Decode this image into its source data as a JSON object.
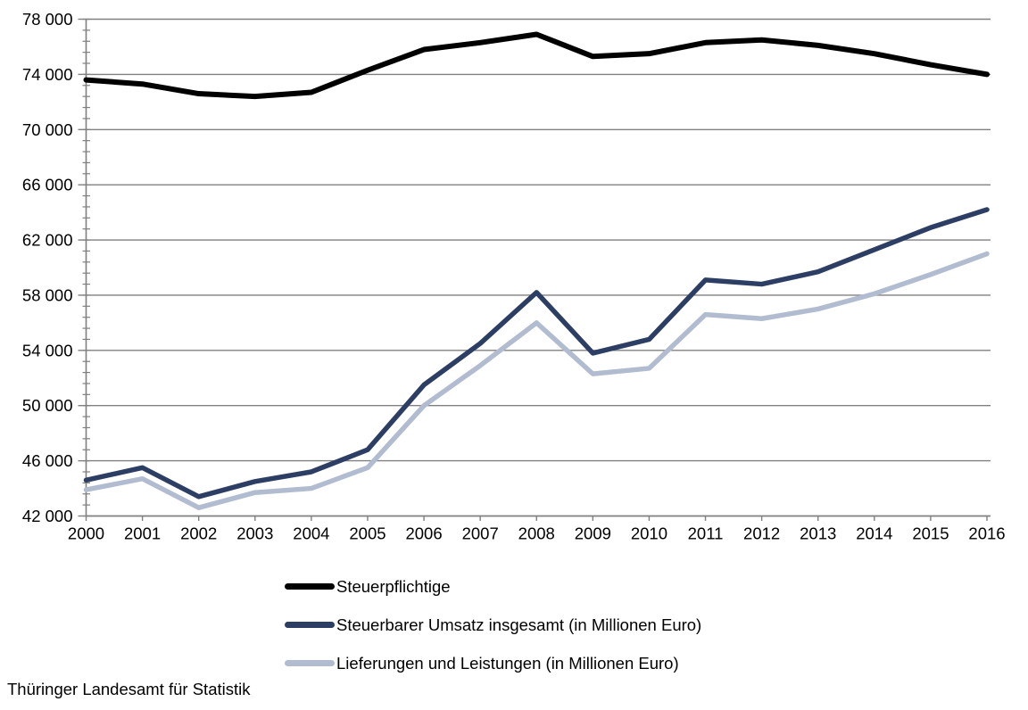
{
  "chart_data": {
    "type": "line",
    "title": "",
    "xlabel": "",
    "ylabel": "",
    "x": [
      2000,
      2001,
      2002,
      2003,
      2004,
      2005,
      2006,
      2007,
      2008,
      2009,
      2010,
      2011,
      2012,
      2013,
      2014,
      2015,
      2016
    ],
    "x_tick_labels": [
      "2000",
      "2001",
      "2002",
      "2003",
      "2004",
      "2005",
      "2006",
      "2007",
      "2008",
      "2009",
      "2010",
      "2011",
      "2012",
      "2013",
      "2014",
      "2015",
      "2016"
    ],
    "y_axis": {
      "min": 42000,
      "max": 78000,
      "major_step": 4000,
      "minor_step": 800,
      "tick_values": [
        42000,
        46000,
        50000,
        54000,
        58000,
        62000,
        66000,
        70000,
        74000,
        78000
      ],
      "tick_labels": [
        "42 000",
        "46 000",
        "50 000",
        "54 000",
        "58 000",
        "62 000",
        "66 000",
        "70 000",
        "74 000",
        "78 000"
      ]
    },
    "grid": "horizontal-major",
    "grid_color": "#808080",
    "axis_color": "#808080",
    "text_color": "#000000",
    "background_color": "#ffffff",
    "legend_position": "bottom-left",
    "series": [
      {
        "name": "Steuerpflichtige",
        "color": "#000000",
        "line_width": 6,
        "values": [
          73600,
          73300,
          72600,
          72400,
          72700,
          74300,
          75800,
          76300,
          76900,
          75300,
          75500,
          76300,
          76500,
          76100,
          75500,
          74700,
          74000
        ]
      },
      {
        "name": "Steuerbarer Umsatz insgesamt (in Millionen Euro)",
        "color": "#2C3E63",
        "line_width": 5.5,
        "values": [
          44600,
          45500,
          43400,
          44500,
          45200,
          46800,
          51500,
          54500,
          58200,
          53800,
          54800,
          59100,
          58800,
          59700,
          61300,
          62900,
          64200
        ]
      },
      {
        "name": "Lieferungen und Leistungen (in Millionen Euro)",
        "color": "#B2BCD0",
        "line_width": 5.5,
        "values": [
          43900,
          44700,
          42600,
          43700,
          44000,
          45500,
          50000,
          52900,
          56000,
          52300,
          52700,
          56600,
          56300,
          57000,
          58100,
          59500,
          61000
        ]
      }
    ]
  },
  "source": "Thüringer Landesamt für Statistik"
}
